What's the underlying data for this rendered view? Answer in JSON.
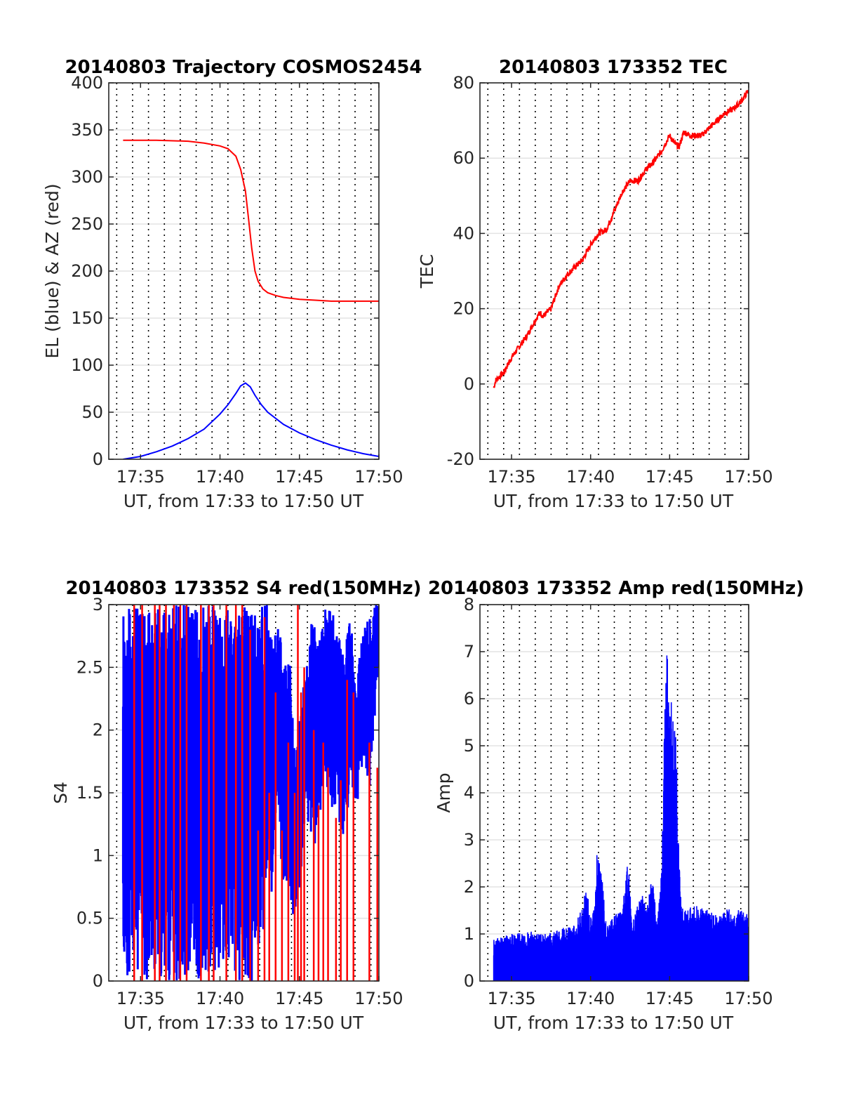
{
  "chart_data": [
    {
      "id": "traj",
      "type": "line",
      "title": "20140803 Trajectory COSMOS2454",
      "xlabel": "UT, from 17:33 to 17:50 UT",
      "ylabel": "EL (blue) & AZ (red)",
      "xunit": "minutes after 17:33 UT",
      "xlim": [
        0,
        17
      ],
      "ylim": [
        0,
        400
      ],
      "xticks": [
        2,
        7,
        12,
        17
      ],
      "xticklabels": [
        "17:35",
        "17:40",
        "17:45",
        "17:50"
      ],
      "yticks": [
        0,
        50,
        100,
        150,
        200,
        250,
        300,
        350,
        400
      ],
      "yticklabels": [
        "0",
        "50",
        "100",
        "150",
        "200",
        "250",
        "300",
        "350",
        "400"
      ],
      "grid": "dotted vertical every 0.5 min, light horizontal at y ticks",
      "series": [
        {
          "color": "#ff0000",
          "x": [
            0.9,
            3,
            5,
            6,
            7,
            7.5,
            8,
            8.3,
            8.6,
            8.8,
            9,
            9.2,
            9.4,
            9.7,
            10,
            10.5,
            11,
            12,
            13,
            14,
            15,
            17
          ],
          "y": [
            339,
            339,
            338,
            336,
            333,
            330,
            322,
            308,
            285,
            255,
            224,
            200,
            189,
            181,
            177,
            174,
            172,
            170,
            169,
            168,
            168,
            168
          ]
        },
        {
          "color": "#0000ff",
          "x": [
            0.9,
            2,
            3,
            4,
            5,
            6,
            7,
            7.5,
            8,
            8.3,
            8.6,
            8.9,
            9.2,
            9.6,
            10,
            11,
            12,
            13,
            14,
            15,
            16,
            17
          ],
          "y": [
            0,
            3,
            8,
            14,
            22,
            32,
            48,
            58,
            70,
            78,
            81,
            77,
            68,
            58,
            50,
            37,
            28,
            21,
            15,
            10,
            6,
            3
          ]
        }
      ]
    },
    {
      "id": "tec",
      "type": "line",
      "title": "20140803 173352 TEC",
      "xlabel": "UT, from 17:33 to 17:50 UT",
      "ylabel": "TEC",
      "xunit": "minutes after 17:33 UT",
      "xlim": [
        0,
        17
      ],
      "ylim": [
        -20,
        80
      ],
      "xticks": [
        2,
        7,
        12,
        17
      ],
      "xticklabels": [
        "17:35",
        "17:40",
        "17:45",
        "17:50"
      ],
      "yticks": [
        -20,
        0,
        20,
        40,
        60,
        80
      ],
      "yticklabels": [
        "-20",
        "0",
        "20",
        "40",
        "60",
        "80"
      ],
      "series": [
        {
          "color": "#ff0000",
          "x": [
            0.87,
            1,
            1.5,
            2,
            2.5,
            3,
            3.5,
            3.8,
            4,
            4.5,
            5,
            5.5,
            6,
            6.5,
            7,
            7.5,
            8,
            8.5,
            9,
            9.5,
            10,
            10.5,
            11,
            11.5,
            12,
            12.3,
            12.6,
            12.9,
            13.3,
            14,
            14.5,
            15,
            15.5,
            16,
            16.5,
            17
          ],
          "y": [
            -1,
            1,
            3,
            7,
            10,
            13,
            17,
            19,
            18,
            20,
            26,
            29,
            31,
            33,
            37,
            40,
            41,
            46,
            51,
            54,
            54,
            57,
            59,
            62,
            66,
            64,
            63,
            67,
            66,
            66,
            68,
            70,
            72,
            73,
            75,
            78
          ]
        }
      ]
    },
    {
      "id": "s4",
      "type": "line",
      "title": "20140803 173352 S4 red(150MHz)",
      "xlabel": "UT, from 17:33 to 17:50 UT",
      "ylabel": "S4",
      "xunit": "minutes after 17:33 UT",
      "xlim": [
        0,
        17
      ],
      "ylim": [
        0,
        3
      ],
      "xticks": [
        2,
        7,
        12,
        17
      ],
      "xticklabels": [
        "17:35",
        "17:40",
        "17:45",
        "17:50"
      ],
      "yticks": [
        0,
        0.5,
        1,
        1.5,
        2,
        2.5,
        3
      ],
      "yticklabels": [
        "0",
        "0.5",
        "1",
        "1.5",
        "2",
        "2.5",
        "3"
      ],
      "series": [
        {
          "color": "#0000ff",
          "band": "saturated 0 to 3 from 17:34 to 17:42, then bursty with troughs near 17:45",
          "x": [
            0.9,
            9.0,
            9.3,
            9.6,
            10.0,
            10.3,
            10.6,
            11.0,
            11.4,
            11.7,
            12.0,
            12.4,
            12.8,
            13.2,
            13.6,
            14.0,
            14.4,
            14.8,
            15.2,
            15.6,
            16.0,
            16.4,
            16.8,
            17.0
          ],
          "lo": [
            0,
            0,
            0.3,
            0,
            1.0,
            0.6,
            1.3,
            0.7,
            0.6,
            0.5,
            0.6,
            1.4,
            1.0,
            1.2,
            1.6,
            1.4,
            1.3,
            1.0,
            1.6,
            1.3,
            1.8,
            1.5,
            2.2,
            2.4
          ],
          "hi": [
            3,
            3,
            3,
            3,
            3,
            2.8,
            3,
            2.5,
            2.6,
            1.8,
            2.1,
            2.5,
            2.9,
            2.7,
            3,
            3,
            2.8,
            2.6,
            2.9,
            2.4,
            2.8,
            2.9,
            3,
            3
          ]
        },
        {
          "color": "#ff0000",
          "type": "spikes",
          "x": [
            1.6,
            2.1,
            2.9,
            3.2,
            3.6,
            4.1,
            4.5,
            4.9,
            5.8,
            6.3,
            6.6,
            7.4,
            8.0,
            8.4,
            8.9,
            9.4,
            9.8,
            10.1,
            10.5,
            10.9,
            11.3,
            11.7,
            11.9,
            12.1,
            12.3,
            12.9,
            13.2,
            13.5,
            13.8,
            14.3,
            14.6,
            15.0,
            15.4,
            16.4,
            16.9
          ],
          "y": [
            3,
            3,
            3,
            3,
            3,
            3,
            3,
            3,
            3,
            3,
            3,
            3,
            3,
            3,
            2.8,
            1.2,
            2.9,
            1.5,
            2.3,
            1.2,
            1.9,
            1.5,
            3,
            2.3,
            2.5,
            2.0,
            1.4,
            1.9,
            1.7,
            1.3,
            1.6,
            2.4,
            2.3,
            1.9,
            1.7
          ]
        }
      ]
    },
    {
      "id": "amp",
      "type": "line",
      "title": "20140803 173352 Amp red(150MHz)",
      "xlabel": "UT, from 17:33 to 17:50 UT",
      "ylabel": "Amp",
      "xunit": "minutes after 17:33 UT",
      "xlim": [
        0,
        17
      ],
      "ylim": [
        0,
        8
      ],
      "xticks": [
        2,
        7,
        12,
        17
      ],
      "xticklabels": [
        "17:35",
        "17:40",
        "17:45",
        "17:50"
      ],
      "yticks": [
        0,
        1,
        2,
        3,
        4,
        5,
        6,
        7,
        8
      ],
      "yticklabels": [
        "0",
        "1",
        "2",
        "3",
        "4",
        "5",
        "6",
        "7",
        "8"
      ],
      "series": [
        {
          "color": "#0000ff",
          "x": [
            0.87,
            2,
            3,
            4,
            5,
            6,
            6.5,
            6.7,
            7,
            7.2,
            7.4,
            7.7,
            8,
            8.5,
            9,
            9.4,
            9.6,
            9.8,
            10.2,
            10.5,
            10.9,
            11.2,
            11.5,
            11.8,
            12.0,
            12.2,
            12.4,
            12.6,
            12.8,
            13.0,
            13.4,
            14,
            15,
            16,
            17
          ],
          "y": [
            0.9,
            1.0,
            1.1,
            1.0,
            1.1,
            1.2,
            1.6,
            2.1,
            1.4,
            1.6,
            2.7,
            2.4,
            1.2,
            1.4,
            1.5,
            2.8,
            1.2,
            1.4,
            1.9,
            1.6,
            2.3,
            1.2,
            2.6,
            7.3,
            5.9,
            6.1,
            5.4,
            2.5,
            1.6,
            1.5,
            1.6,
            1.6,
            1.4,
            1.6,
            1.4
          ]
        }
      ]
    }
  ]
}
